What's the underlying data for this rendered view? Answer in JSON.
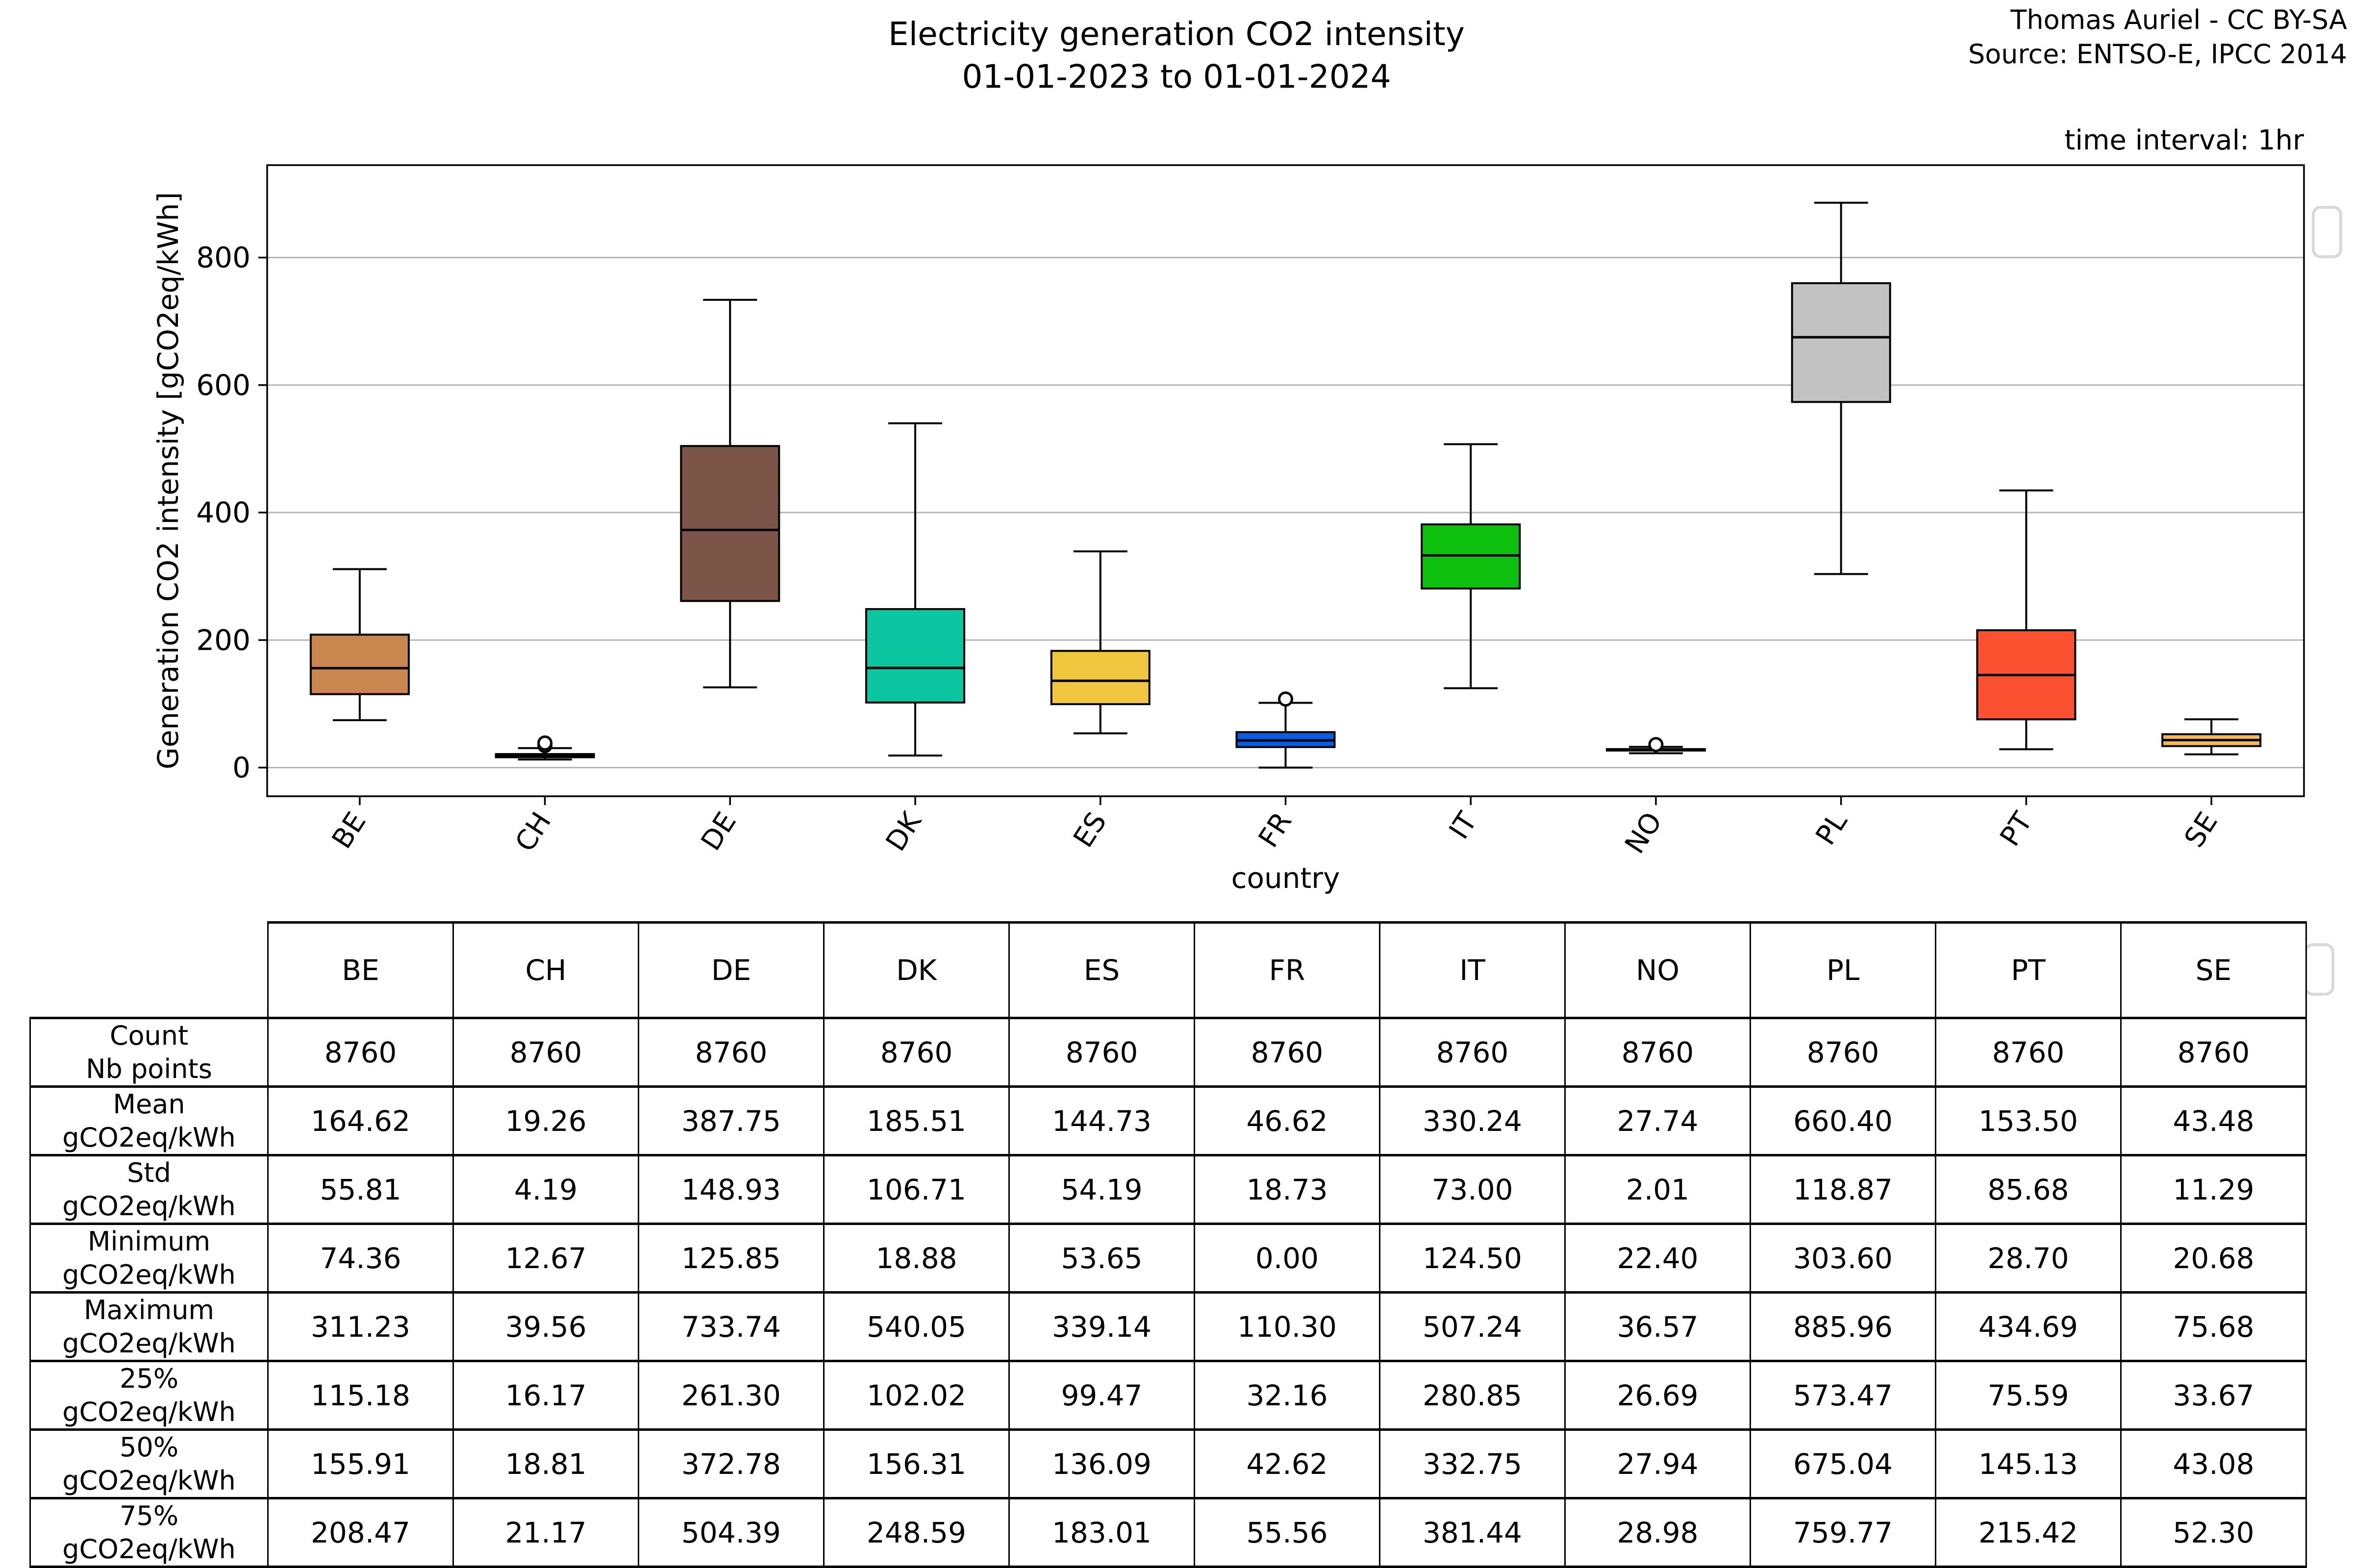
{
  "header": {
    "title_line1": "Electricity generation CO2 intensity",
    "title_line2": "01-01-2023 to 01-01-2024",
    "attribution_line1": "Thomas Auriel - CC BY-SA",
    "attribution_line2": "Source: ENTSO-E, IPCC 2014",
    "time_interval": "time interval: 1hr"
  },
  "chart_data": {
    "type": "box",
    "title": "Electricity generation CO2 intensity 01-01-2023 to 01-01-2024",
    "xlabel": "country",
    "ylabel": "Generation CO2 intensity [gCO2eq/kWh]",
    "ylim": [
      -45,
      945
    ],
    "yticks": [
      0,
      200,
      400,
      600,
      800
    ],
    "grid": true,
    "legend": "none",
    "categories": [
      "BE",
      "CH",
      "DE",
      "DK",
      "ES",
      "FR",
      "IT",
      "NO",
      "PL",
      "PT",
      "SE"
    ],
    "series": [
      {
        "name": "BE",
        "color": "#c9874f",
        "min": 74.36,
        "q1": 115.18,
        "median": 155.91,
        "q3": 208.47,
        "max": 311.23,
        "whisker_low": 74.36,
        "whisker_high": 311.23,
        "fliers": []
      },
      {
        "name": "CH",
        "color": "#a30000",
        "min": 12.67,
        "q1": 16.17,
        "median": 18.81,
        "q3": 21.17,
        "max": 39.56,
        "whisker_low": 12.67,
        "whisker_high": 30.5,
        "fliers": [
          34.5,
          38.5
        ]
      },
      {
        "name": "DE",
        "color": "#7a5548",
        "min": 125.85,
        "q1": 261.3,
        "median": 372.78,
        "q3": 504.39,
        "max": 733.74,
        "whisker_low": 125.85,
        "whisker_high": 733.74,
        "fliers": []
      },
      {
        "name": "DK",
        "color": "#0cc6a2",
        "min": 18.88,
        "q1": 102.02,
        "median": 156.31,
        "q3": 248.59,
        "max": 540.05,
        "whisker_low": 18.88,
        "whisker_high": 540.05,
        "fliers": []
      },
      {
        "name": "ES",
        "color": "#efc63e",
        "min": 53.65,
        "q1": 99.47,
        "median": 136.09,
        "q3": 183.01,
        "max": 339.14,
        "whisker_low": 53.65,
        "whisker_high": 339.14,
        "fliers": []
      },
      {
        "name": "FR",
        "color": "#085ce8",
        "min": 0.0,
        "q1": 32.16,
        "median": 42.62,
        "q3": 55.56,
        "max": 110.3,
        "whisker_low": 0.0,
        "whisker_high": 101.5,
        "fliers": [
          107.5
        ]
      },
      {
        "name": "IT",
        "color": "#0ec00e",
        "min": 124.5,
        "q1": 280.85,
        "median": 332.75,
        "q3": 381.44,
        "max": 507.24,
        "whisker_low": 124.5,
        "whisker_high": 507.24,
        "fliers": []
      },
      {
        "name": "NO",
        "color": "#ffffff",
        "min": 22.4,
        "q1": 26.69,
        "median": 27.94,
        "q3": 28.98,
        "max": 36.57,
        "whisker_low": 22.4,
        "whisker_high": 32.4,
        "fliers": [
          36.0
        ]
      },
      {
        "name": "PL",
        "color": "#c2c2c2",
        "min": 303.6,
        "q1": 573.47,
        "median": 675.04,
        "q3": 759.77,
        "max": 885.96,
        "whisker_low": 303.6,
        "whisker_high": 885.96,
        "fliers": []
      },
      {
        "name": "PT",
        "color": "#fc5130",
        "min": 28.7,
        "q1": 75.59,
        "median": 145.13,
        "q3": 215.42,
        "max": 434.69,
        "whisker_low": 28.7,
        "whisker_high": 434.69,
        "fliers": []
      },
      {
        "name": "SE",
        "color": "#fbb84c",
        "min": 20.68,
        "q1": 33.67,
        "median": 43.08,
        "q3": 52.3,
        "max": 75.68,
        "whisker_low": 20.68,
        "whisker_high": 75.68,
        "fliers": []
      }
    ]
  },
  "table": {
    "col_headers": [
      "BE",
      "CH",
      "DE",
      "DK",
      "ES",
      "FR",
      "IT",
      "NO",
      "PL",
      "PT",
      "SE"
    ],
    "rows": [
      {
        "label": "Count",
        "unit": "Nb points",
        "values": [
          "8760",
          "8760",
          "8760",
          "8760",
          "8760",
          "8760",
          "8760",
          "8760",
          "8760",
          "8760",
          "8760"
        ]
      },
      {
        "label": "Mean",
        "unit": "gCO2eq/kWh",
        "values": [
          "164.62",
          "19.26",
          "387.75",
          "185.51",
          "144.73",
          "46.62",
          "330.24",
          "27.74",
          "660.40",
          "153.50",
          "43.48"
        ]
      },
      {
        "label": "Std",
        "unit": "gCO2eq/kWh",
        "values": [
          "55.81",
          "4.19",
          "148.93",
          "106.71",
          "54.19",
          "18.73",
          "73.00",
          "2.01",
          "118.87",
          "85.68",
          "11.29"
        ]
      },
      {
        "label": "Minimum",
        "unit": "gCO2eq/kWh",
        "values": [
          "74.36",
          "12.67",
          "125.85",
          "18.88",
          "53.65",
          "0.00",
          "124.50",
          "22.40",
          "303.60",
          "28.70",
          "20.68"
        ]
      },
      {
        "label": "Maximum",
        "unit": "gCO2eq/kWh",
        "values": [
          "311.23",
          "39.56",
          "733.74",
          "540.05",
          "339.14",
          "110.30",
          "507.24",
          "36.57",
          "885.96",
          "434.69",
          "75.68"
        ]
      },
      {
        "label": "25%",
        "unit": "gCO2eq/kWh",
        "values": [
          "115.18",
          "16.17",
          "261.30",
          "102.02",
          "99.47",
          "32.16",
          "280.85",
          "26.69",
          "573.47",
          "75.59",
          "33.67"
        ]
      },
      {
        "label": "50%",
        "unit": "gCO2eq/kWh",
        "values": [
          "155.91",
          "18.81",
          "372.78",
          "156.31",
          "136.09",
          "42.62",
          "332.75",
          "27.94",
          "675.04",
          "145.13",
          "43.08"
        ]
      },
      {
        "label": "75%",
        "unit": "gCO2eq/kWh",
        "values": [
          "208.47",
          "21.17",
          "504.39",
          "248.59",
          "183.01",
          "55.56",
          "381.44",
          "28.98",
          "759.77",
          "215.42",
          "52.30"
        ]
      }
    ]
  },
  "colors": {
    "grid": "#b5b5b5",
    "axis": "#000000",
    "table_border": "#000000",
    "widget_border": "#d9d9d9"
  }
}
